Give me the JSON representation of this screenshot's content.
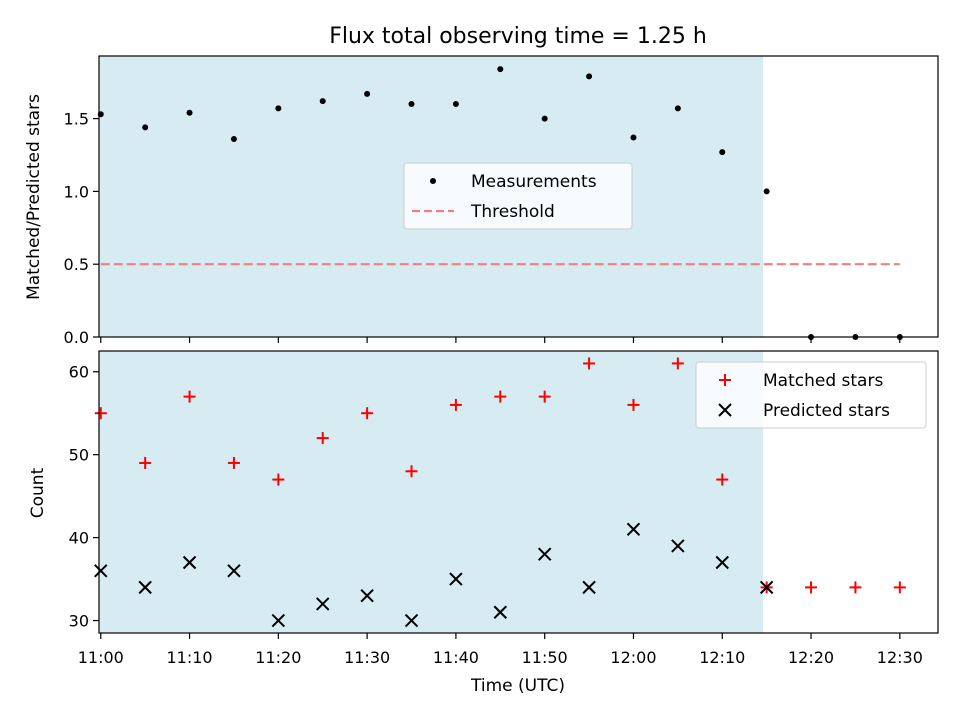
{
  "chart_data": {
    "type": "scatter",
    "title": "Flux total observing time = 1.25 h",
    "xlabel": "Time (UTC)",
    "x_ticks": [
      "11:00",
      "11:10",
      "11:20",
      "11:30",
      "11:40",
      "11:50",
      "12:00",
      "12:10",
      "12:20",
      "12:30"
    ],
    "x_range": [
      "10:59.8",
      "12:34.3"
    ],
    "observing_window": [
      "10:59.8",
      "12:14.6"
    ],
    "colors": {
      "window": "#add8e6",
      "measurements": "#000000",
      "threshold": "#f08080",
      "matched": "#ff0000",
      "predicted": "#000000"
    },
    "grid": false,
    "top_panel": {
      "ylabel": "Matched/Predicted stars",
      "ylim": [
        0,
        1.93
      ],
      "y_ticks": [
        "0.0",
        "0.5",
        "1.0",
        "1.5"
      ],
      "legend_position": "center",
      "series": [
        {
          "name": "Measurements",
          "marker": "dot",
          "points": [
            {
              "x": "11:00",
              "y": 1.53
            },
            {
              "x": "11:05",
              "y": 1.44
            },
            {
              "x": "11:10",
              "y": 1.54
            },
            {
              "x": "11:15",
              "y": 1.36
            },
            {
              "x": "11:20",
              "y": 1.57
            },
            {
              "x": "11:25",
              "y": 1.62
            },
            {
              "x": "11:30",
              "y": 1.67
            },
            {
              "x": "11:35",
              "y": 1.6
            },
            {
              "x": "11:40",
              "y": 1.6
            },
            {
              "x": "11:45",
              "y": 1.84
            },
            {
              "x": "11:50",
              "y": 1.5
            },
            {
              "x": "11:55",
              "y": 1.79
            },
            {
              "x": "12:00",
              "y": 1.37
            },
            {
              "x": "12:05",
              "y": 1.57
            },
            {
              "x": "12:10",
              "y": 1.27
            },
            {
              "x": "12:15",
              "y": 1.0
            },
            {
              "x": "12:20",
              "y": 0.0
            },
            {
              "x": "12:25",
              "y": 0.0
            },
            {
              "x": "12:30",
              "y": 0.0
            }
          ]
        },
        {
          "name": "Threshold",
          "marker": "dashed-line",
          "points": [
            {
              "x": "11:00",
              "y": 0.5
            },
            {
              "x": "12:30",
              "y": 0.5
            }
          ]
        }
      ]
    },
    "bottom_panel": {
      "ylabel": "Count",
      "ylim": [
        28.5,
        62.5
      ],
      "y_ticks": [
        "30",
        "40",
        "50",
        "60"
      ],
      "legend_position": "top-right",
      "series": [
        {
          "name": "Matched stars",
          "marker": "plus",
          "points": [
            {
              "x": "11:00",
              "y": 55
            },
            {
              "x": "11:05",
              "y": 49
            },
            {
              "x": "11:10",
              "y": 57
            },
            {
              "x": "11:15",
              "y": 49
            },
            {
              "x": "11:20",
              "y": 47
            },
            {
              "x": "11:25",
              "y": 52
            },
            {
              "x": "11:30",
              "y": 55
            },
            {
              "x": "11:35",
              "y": 48
            },
            {
              "x": "11:40",
              "y": 56
            },
            {
              "x": "11:45",
              "y": 57
            },
            {
              "x": "11:50",
              "y": 57
            },
            {
              "x": "11:55",
              "y": 61
            },
            {
              "x": "12:00",
              "y": 56
            },
            {
              "x": "12:05",
              "y": 61
            },
            {
              "x": "12:10",
              "y": 47
            },
            {
              "x": "12:15",
              "y": 34
            },
            {
              "x": "12:20",
              "y": 34
            },
            {
              "x": "12:25",
              "y": 34
            },
            {
              "x": "12:30",
              "y": 34
            }
          ]
        },
        {
          "name": "Predicted stars",
          "marker": "x",
          "points": [
            {
              "x": "11:00",
              "y": 36
            },
            {
              "x": "11:05",
              "y": 34
            },
            {
              "x": "11:10",
              "y": 37
            },
            {
              "x": "11:15",
              "y": 36
            },
            {
              "x": "11:20",
              "y": 30
            },
            {
              "x": "11:25",
              "y": 32
            },
            {
              "x": "11:30",
              "y": 33
            },
            {
              "x": "11:35",
              "y": 30
            },
            {
              "x": "11:40",
              "y": 35
            },
            {
              "x": "11:45",
              "y": 31
            },
            {
              "x": "11:50",
              "y": 38
            },
            {
              "x": "11:55",
              "y": 34
            },
            {
              "x": "12:00",
              "y": 41
            },
            {
              "x": "12:05",
              "y": 39
            },
            {
              "x": "12:10",
              "y": 37
            },
            {
              "x": "12:15",
              "y": 34
            }
          ]
        }
      ]
    }
  }
}
